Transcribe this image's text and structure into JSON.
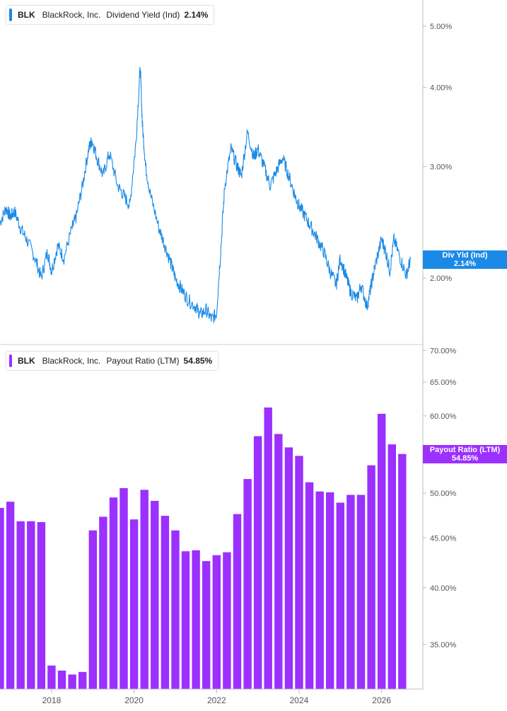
{
  "colors": {
    "line": "#1a8ae6",
    "bar": "#9b30ff",
    "axis": "#bdbdbd",
    "text": "#555555"
  },
  "legend_top": {
    "ticker": "BLK",
    "company": "BlackRock, Inc.",
    "metric": "Dividend Yield (Ind)",
    "value": "2.14%"
  },
  "legend_bottom": {
    "ticker": "BLK",
    "company": "BlackRock, Inc.",
    "metric": "Payout Ratio (LTM)",
    "value": "54.85%"
  },
  "tag_top": {
    "label": "Div Yld (Ind)",
    "value": "2.14%"
  },
  "tag_bottom": {
    "label": "Payout Ratio (LTM)",
    "value": "54.85%"
  },
  "chart_data": [
    {
      "type": "line",
      "title": "BLK BlackRock, Inc. Dividend Yield (Ind)",
      "scale": "log",
      "ylim": [
        1.57,
        5.5
      ],
      "y_ticks": [
        2.0,
        3.0,
        4.0,
        5.0
      ],
      "y_tick_labels": [
        "2.00%",
        "3.00%",
        "4.00%",
        "5.00%"
      ],
      "x_range": [
        2016.75,
        2027.0
      ],
      "series": [
        {
          "x": [
            2016.75,
            2016.9,
            2017.0,
            2017.1,
            2017.25,
            2017.4,
            2017.6,
            2017.75,
            2017.9,
            2018.0,
            2018.15,
            2018.3,
            2018.5,
            2018.6,
            2018.75,
            2018.9,
            2018.98,
            2019.1,
            2019.25,
            2019.4,
            2019.6,
            2019.75,
            2019.9,
            2020.05,
            2020.15,
            2020.2,
            2020.28,
            2020.4,
            2020.6,
            2020.75,
            2020.9,
            2021.0,
            2021.15,
            2021.3,
            2021.5,
            2021.6,
            2021.75,
            2021.88,
            2022.0,
            2022.1,
            2022.2,
            2022.35,
            2022.5,
            2022.6,
            2022.75,
            2022.9,
            2023.0,
            2023.15,
            2023.3,
            2023.45,
            2023.6,
            2023.75,
            2023.9,
            2024.0,
            2024.15,
            2024.3,
            2024.45,
            2024.6,
            2024.75,
            2024.9,
            2025.0,
            2025.15,
            2025.25,
            2025.4,
            2025.5,
            2025.65,
            2025.75,
            2025.85,
            2026.0,
            2026.1,
            2026.2,
            2026.3,
            2026.45,
            2026.6,
            2026.7
          ],
          "y": [
            2.45,
            2.58,
            2.5,
            2.55,
            2.4,
            2.3,
            2.15,
            2.0,
            2.2,
            2.05,
            2.25,
            2.15,
            2.4,
            2.5,
            2.8,
            3.2,
            3.3,
            3.1,
            2.9,
            3.15,
            2.8,
            2.7,
            2.6,
            3.3,
            4.3,
            3.5,
            3.0,
            2.7,
            2.4,
            2.25,
            2.1,
            2.0,
            1.92,
            1.85,
            1.8,
            1.75,
            1.78,
            1.72,
            1.76,
            2.2,
            2.8,
            3.2,
            3.0,
            2.9,
            3.4,
            3.1,
            3.2,
            3.0,
            2.8,
            2.95,
            3.1,
            2.9,
            2.7,
            2.6,
            2.5,
            2.4,
            2.3,
            2.2,
            2.05,
            1.95,
            2.15,
            2.0,
            1.9,
            1.85,
            1.95,
            1.8,
            1.95,
            2.1,
            2.3,
            2.2,
            2.05,
            2.3,
            2.15,
            2.02,
            2.14
          ]
        }
      ]
    },
    {
      "type": "bar",
      "title": "BLK BlackRock, Inc. Payout Ratio (LTM)",
      "scale": "log",
      "ylim": [
        31.5,
        71.0
      ],
      "y_ticks": [
        35,
        40,
        45,
        50,
        55,
        60,
        65,
        70
      ],
      "y_tick_labels": [
        "35.00%",
        "40.00%",
        "45.00%",
        "50.00%",
        "55.00%",
        "60.00%",
        "65.00%",
        "70.00%"
      ],
      "x_ticks": [
        2018,
        2020,
        2022,
        2024,
        2026
      ],
      "x_tick_labels": [
        "2018",
        "2020",
        "2022",
        "2024",
        "2026"
      ],
      "x_range": [
        2016.75,
        2027.0
      ],
      "series": [
        {
          "x": [
            2016.75,
            2017.0,
            2017.25,
            2017.5,
            2017.75,
            2018.0,
            2018.25,
            2018.5,
            2018.75,
            2019.0,
            2019.25,
            2019.5,
            2019.75,
            2020.0,
            2020.25,
            2020.5,
            2020.75,
            2021.0,
            2021.25,
            2021.5,
            2021.75,
            2022.0,
            2022.25,
            2022.5,
            2022.75,
            2023.0,
            2023.25,
            2023.5,
            2023.75,
            2024.0,
            2024.25,
            2024.5,
            2024.75,
            2025.0,
            2025.25,
            2025.5,
            2025.75,
            2026.0,
            2026.25,
            2026.5
          ],
          "values": [
            48.3,
            49.0,
            46.8,
            46.8,
            46.7,
            33.3,
            32.9,
            32.6,
            32.8,
            45.8,
            47.3,
            49.5,
            50.6,
            47.0,
            50.4,
            49.1,
            47.4,
            45.8,
            43.6,
            43.7,
            42.6,
            43.2,
            43.5,
            47.6,
            51.7,
            57.2,
            61.2,
            57.5,
            55.7,
            54.6,
            51.3,
            50.2,
            50.1,
            48.9,
            49.8,
            49.8,
            53.4,
            60.3,
            56.1,
            54.85
          ]
        }
      ]
    }
  ]
}
